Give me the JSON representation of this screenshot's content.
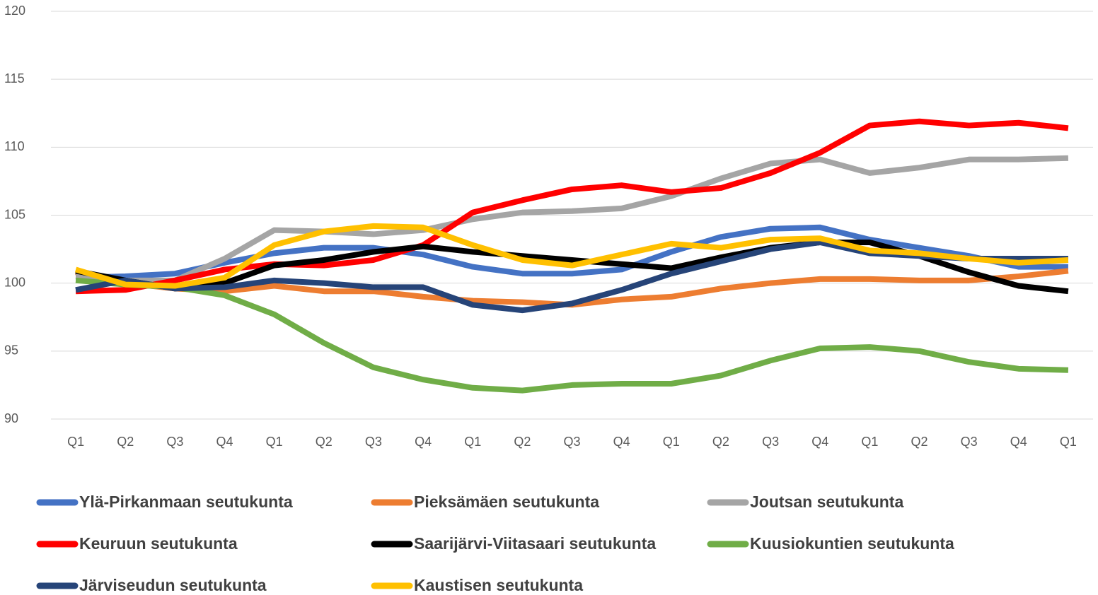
{
  "chart_data": {
    "type": "line",
    "categories": [
      "Q1",
      "Q2",
      "Q3",
      "Q4",
      "Q1",
      "Q2",
      "Q3",
      "Q4",
      "Q1",
      "Q2",
      "Q3",
      "Q4",
      "Q1",
      "Q2",
      "Q3",
      "Q4",
      "Q1",
      "Q2",
      "Q3",
      "Q4",
      "Q1"
    ],
    "ylim": [
      90,
      120
    ],
    "yticks": [
      90,
      95,
      100,
      105,
      110,
      115,
      120
    ],
    "grid": true,
    "legend": "bottom",
    "series": [
      {
        "name": "Ylä-Pirkanmaan seutukunta",
        "color": "#4472c4",
        "values": [
          100.4,
          100.5,
          100.7,
          101.5,
          102.2,
          102.6,
          102.6,
          102.1,
          101.2,
          100.7,
          100.7,
          101.0,
          102.3,
          103.4,
          104.0,
          104.1,
          103.2,
          102.6,
          102.0,
          101.2,
          101.2
        ]
      },
      {
        "name": "Pieksämäen seutukunta",
        "color": "#ed7d31",
        "values": [
          100.8,
          100.0,
          99.6,
          99.4,
          99.8,
          99.4,
          99.4,
          99.0,
          98.7,
          98.6,
          98.4,
          98.8,
          99.0,
          99.6,
          100.0,
          100.3,
          100.3,
          100.2,
          100.2,
          100.5,
          100.9
        ]
      },
      {
        "name": "Joutsan seutukunta",
        "color": "#a5a5a5",
        "values": [
          100.5,
          100.2,
          100.2,
          101.8,
          103.9,
          103.8,
          103.6,
          103.9,
          104.7,
          105.2,
          105.3,
          105.5,
          106.4,
          107.7,
          108.8,
          109.1,
          108.1,
          108.5,
          109.1,
          109.1,
          109.2
        ]
      },
      {
        "name": "Keuruun seutukunta",
        "color": "#ff0000",
        "values": [
          99.4,
          99.5,
          100.2,
          101.0,
          101.4,
          101.3,
          101.7,
          102.8,
          105.2,
          106.1,
          106.9,
          107.2,
          106.7,
          107.0,
          108.1,
          109.6,
          111.6,
          111.9,
          111.6,
          111.8,
          111.4
        ]
      },
      {
        "name": "Saarijärvi-Viitasaari seutukunta",
        "color": "#000000",
        "values": [
          100.9,
          100.2,
          99.6,
          100.0,
          101.3,
          101.7,
          102.3,
          102.7,
          102.3,
          102.0,
          101.7,
          101.4,
          101.1,
          101.9,
          102.6,
          103.0,
          103.0,
          102.0,
          100.8,
          99.8,
          99.4
        ]
      },
      {
        "name": "Kuusiokuntien seutukunta",
        "color": "#70ad47",
        "values": [
          100.2,
          99.9,
          99.7,
          99.1,
          97.7,
          95.6,
          93.8,
          92.9,
          92.3,
          92.1,
          92.5,
          92.6,
          92.6,
          93.2,
          94.3,
          95.2,
          95.3,
          95.0,
          94.2,
          93.7,
          93.6
        ]
      },
      {
        "name": "Järviseudun seutukunta",
        "color": "#264478",
        "values": [
          99.5,
          100.2,
          99.6,
          99.7,
          100.2,
          100.0,
          99.7,
          99.7,
          98.4,
          98.0,
          98.5,
          99.5,
          100.7,
          101.6,
          102.5,
          103.0,
          102.2,
          102.0,
          101.8,
          101.8,
          101.8
        ]
      },
      {
        "name": "Kaustisen seutukunta",
        "color": "#ffc000",
        "values": [
          101.0,
          99.9,
          99.8,
          100.4,
          102.8,
          103.8,
          104.2,
          104.1,
          102.8,
          101.7,
          101.3,
          102.1,
          102.9,
          102.6,
          103.2,
          103.3,
          102.4,
          102.2,
          101.8,
          101.5,
          101.7
        ]
      }
    ]
  }
}
